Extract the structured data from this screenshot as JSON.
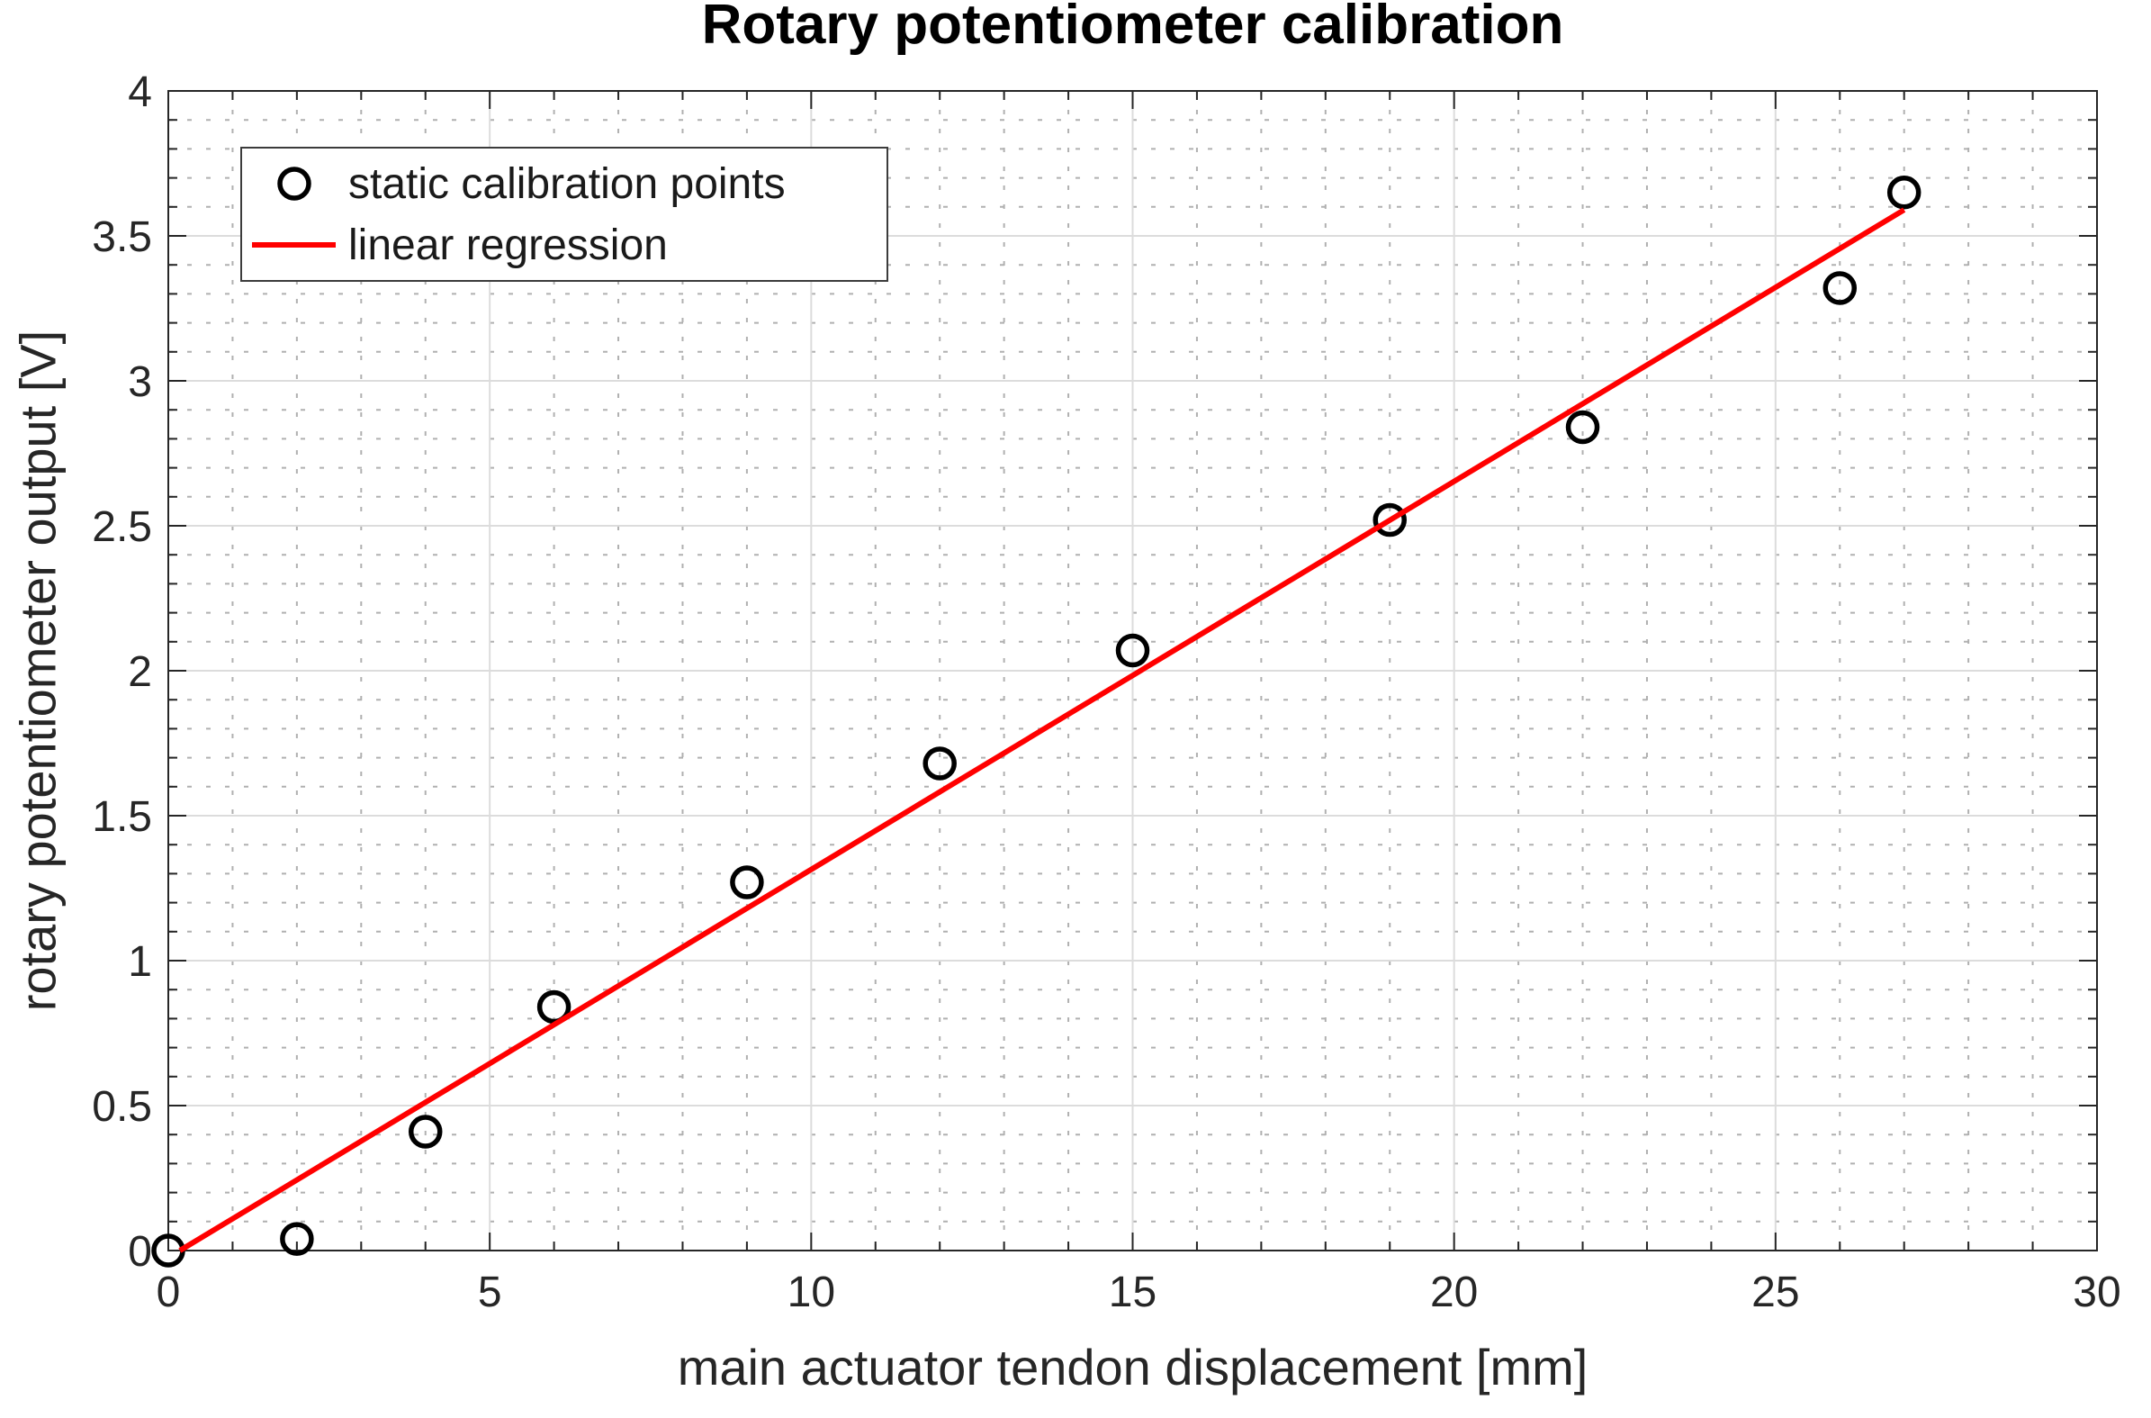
{
  "chart_data": {
    "type": "scatter",
    "title": "Rotary potentiometer calibration",
    "xlabel": "main actuator tendon displacement [mm]",
    "ylabel": "rotary potentiometer output [V]",
    "xlim": [
      0,
      30
    ],
    "ylim": [
      0,
      4
    ],
    "x_ticks": [
      0,
      5,
      10,
      15,
      20,
      25,
      30
    ],
    "y_ticks": [
      0,
      0.5,
      1,
      1.5,
      2,
      2.5,
      3,
      3.5,
      4
    ],
    "grid": {
      "major": "on-solid",
      "minor": "on-dotted",
      "minor_x_step": 1,
      "minor_y_step": 0.1,
      "major_color": "#dcdcdc",
      "minor_color": "#b0b0b0"
    },
    "axis_color": "#262626",
    "series": [
      {
        "name": "static calibration points",
        "type": "scatter",
        "marker": "open-circle",
        "color": "#000000",
        "points": [
          [
            0,
            0
          ],
          [
            2,
            0.04
          ],
          [
            4,
            0.41
          ],
          [
            6,
            0.84
          ],
          [
            9,
            1.27
          ],
          [
            12,
            1.68
          ],
          [
            15,
            2.07
          ],
          [
            19,
            2.52
          ],
          [
            22,
            2.84
          ],
          [
            26,
            3.32
          ],
          [
            27,
            3.65
          ]
        ]
      },
      {
        "name": "linear regression",
        "type": "line",
        "color": "#ff0000",
        "points": [
          [
            0.18,
            0
          ],
          [
            27,
            3.59
          ]
        ]
      }
    ],
    "legend": {
      "position": "top-left",
      "items": [
        {
          "label": "static calibration points",
          "marker": "open-circle",
          "color": "#000000"
        },
        {
          "label": "linear regression",
          "marker": "line",
          "color": "#ff0000"
        }
      ]
    }
  }
}
